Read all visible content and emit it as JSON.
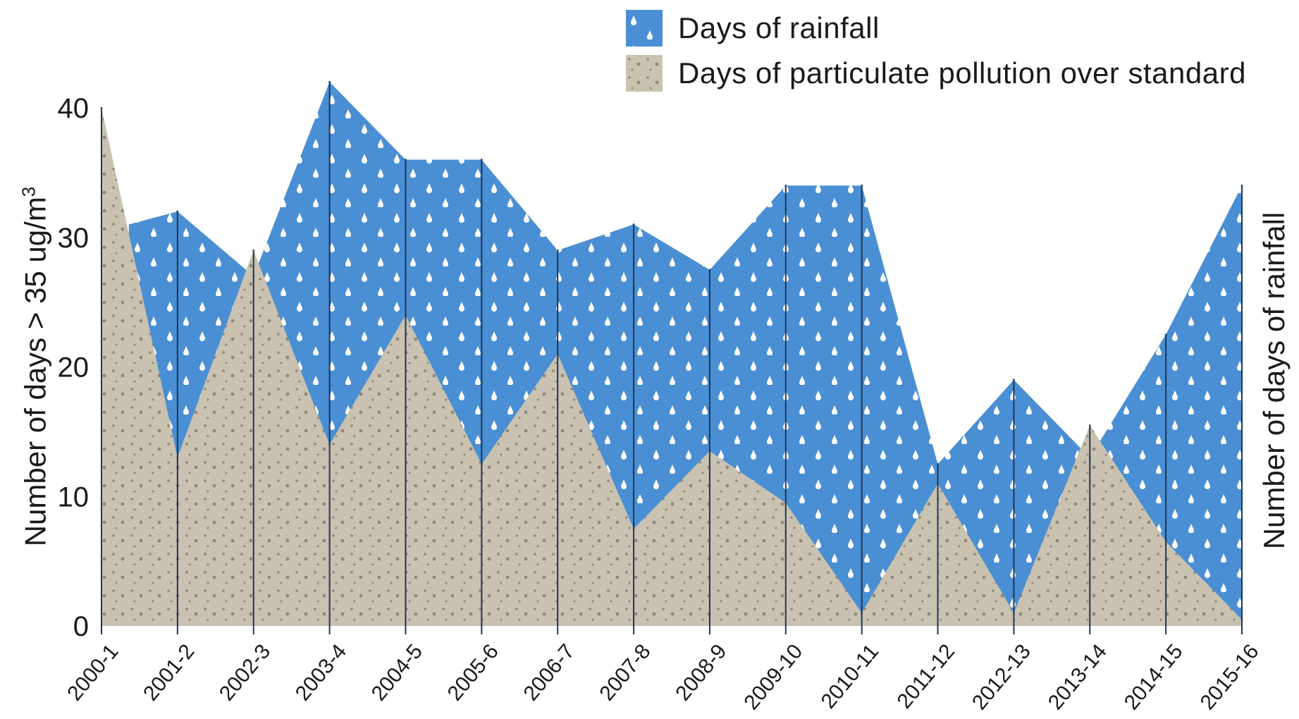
{
  "chart_data": {
    "type": "area",
    "categories": [
      "2000-1",
      "2001-2",
      "2002-3",
      "2003-4",
      "2004-5",
      "2005-6",
      "2006-7",
      "2007-8",
      "2008-9",
      "2009-10",
      "2010-11",
      "2011-12",
      "2012-13",
      "2013-14",
      "2014-15",
      "2015-16"
    ],
    "series": [
      {
        "name": "Days of rainfall",
        "color": "#4a8fd3",
        "pattern": "raindrops",
        "values": [
          null,
          32,
          27,
          42,
          36,
          36,
          29,
          31,
          27.5,
          34,
          34,
          12.5,
          19,
          13,
          22.5,
          34
        ]
      },
      {
        "name": "Days of particulate pollution over standard",
        "color": "#c9c2b0",
        "pattern": "dots",
        "values": [
          40,
          13,
          29,
          14,
          24,
          12.5,
          21,
          7.5,
          13.5,
          9.5,
          1,
          11,
          1,
          15.5,
          6.5,
          0.5
        ]
      }
    ],
    "rainfall_start_value": 31,
    "ylim": [
      0,
      40
    ],
    "yticks": [
      "0",
      "10",
      "20",
      "30",
      "40"
    ],
    "ylabel_left": "Number of days > 35 ug/m",
    "ylabel_left_sup": "3",
    "ylabel_right": "Number of days of rainfall",
    "legend_position": "top-right",
    "grid": false
  }
}
